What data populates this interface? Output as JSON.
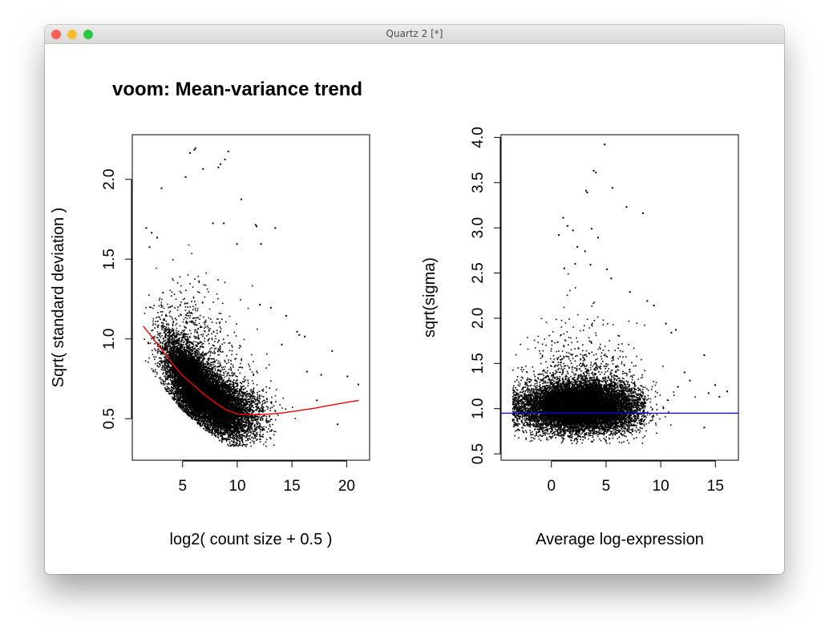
{
  "window": {
    "title": "Quartz 2 [*]",
    "buttons": {
      "close": "#fe5f57",
      "minimize": "#febc2e",
      "zoom": "#28c840"
    }
  },
  "chart_data": [
    {
      "type": "scatter",
      "title": "voom: Mean-variance trend",
      "xlabel": "log2( count size + 0.5 )",
      "ylabel": "Sqrt( standard deviation )",
      "xlim": [
        0.4,
        22.1
      ],
      "ylim": [
        0.24,
        2.28
      ],
      "xticks": [
        5,
        10,
        15,
        20
      ],
      "yticks": [
        0.5,
        1.0,
        1.5,
        2.0
      ],
      "ytick_labels": [
        "0.5",
        "1.0",
        "1.5",
        "2.0"
      ],
      "grid": false,
      "point_color": "#000000",
      "density_model": {
        "n_points": 15000,
        "seed": 7,
        "count_mean": 6.6,
        "count_sd": 2.3,
        "count_min": 1.4,
        "count_max": 21.8
      },
      "points": [
        [
          5.6,
          2.17
        ],
        [
          6.0,
          2.19
        ],
        [
          6.1,
          2.2
        ],
        [
          8.2,
          2.08
        ],
        [
          8.4,
          2.1
        ],
        [
          9.1,
          2.18
        ],
        [
          8.8,
          2.13
        ],
        [
          6.8,
          2.07
        ],
        [
          5.2,
          2.02
        ],
        [
          3.0,
          1.95
        ],
        [
          10.3,
          1.88
        ],
        [
          7.7,
          1.73
        ],
        [
          8.7,
          1.73
        ],
        [
          11.6,
          1.72
        ],
        [
          11.7,
          1.71
        ],
        [
          13.4,
          1.7
        ],
        [
          9.9,
          1.6
        ],
        [
          12.1,
          1.6
        ],
        [
          14.4,
          1.15
        ],
        [
          15.4,
          1.05
        ],
        [
          15.6,
          1.03
        ],
        [
          16.1,
          1.02
        ],
        [
          17.6,
          0.78
        ],
        [
          18.6,
          0.93
        ],
        [
          20.0,
          0.77
        ],
        [
          21.0,
          0.72
        ],
        [
          19.1,
          0.47
        ],
        [
          12.0,
          1.22
        ],
        [
          13.0,
          1.2
        ],
        [
          14.0,
          0.97
        ],
        [
          16.3,
          0.8
        ],
        [
          17.2,
          0.62
        ],
        [
          1.6,
          1.7
        ],
        [
          2.1,
          1.67
        ],
        [
          2.6,
          1.64
        ],
        [
          1.9,
          1.58
        ]
      ],
      "trend_line": {
        "color": "#ff0000",
        "x": [
          1.4,
          2.0,
          3.0,
          4.0,
          5.0,
          6.0,
          7.0,
          8.0,
          9.0,
          10.0,
          11.0,
          12.0,
          13.0,
          14.0,
          15.0,
          16.0,
          17.0,
          18.0,
          19.0,
          20.0,
          21.1
        ],
        "y": [
          1.08,
          1.03,
          0.94,
          0.85,
          0.77,
          0.71,
          0.65,
          0.6,
          0.555,
          0.53,
          0.525,
          0.525,
          0.53,
          0.535,
          0.545,
          0.555,
          0.565,
          0.578,
          0.59,
          0.603,
          0.615
        ]
      }
    },
    {
      "type": "scatter",
      "title": "",
      "xlabel": "Average log-expression",
      "ylabel": "sqrt(sigma)",
      "xlim": [
        -4.6,
        17.1
      ],
      "ylim": [
        0.43,
        4.03
      ],
      "xticks": [
        0,
        5,
        10,
        15
      ],
      "yticks": [
        0.5,
        1.0,
        1.5,
        2.0,
        2.5,
        3.0,
        3.5,
        4.0
      ],
      "ytick_labels": [
        "0.5",
        "1.0",
        "1.5",
        "2.0",
        "2.5",
        "3.0",
        "3.5",
        "4.0"
      ],
      "grid": false,
      "point_color": "#000000",
      "density_model": {
        "n_points": 15000,
        "seed": 11,
        "expr_mean": 2.6,
        "expr_sd": 2.6,
        "expr_min": -3.6,
        "expr_max": 16.2
      },
      "points": [
        [
          4.8,
          3.93
        ],
        [
          3.8,
          3.64
        ],
        [
          4.0,
          3.62
        ],
        [
          3.1,
          3.42
        ],
        [
          3.2,
          3.4
        ],
        [
          5.5,
          3.45
        ],
        [
          6.8,
          3.24
        ],
        [
          8.3,
          3.17
        ],
        [
          1.0,
          3.12
        ],
        [
          1.4,
          3.03
        ],
        [
          0.6,
          2.93
        ],
        [
          1.9,
          2.98
        ],
        [
          3.6,
          3.0
        ],
        [
          4.2,
          2.9
        ],
        [
          2.3,
          2.8
        ],
        [
          3.0,
          2.75
        ],
        [
          1.1,
          2.56
        ],
        [
          2.1,
          2.61
        ],
        [
          3.5,
          2.6
        ],
        [
          5.0,
          2.55
        ],
        [
          5.4,
          2.45
        ],
        [
          7.1,
          2.3
        ],
        [
          8.7,
          2.2
        ],
        [
          9.3,
          2.15
        ],
        [
          11.3,
          1.88
        ],
        [
          13.9,
          1.6
        ],
        [
          14.3,
          1.18
        ],
        [
          14.9,
          1.27
        ],
        [
          15.3,
          1.14
        ],
        [
          16.0,
          1.2
        ],
        [
          12.1,
          1.41
        ],
        [
          12.6,
          1.32
        ],
        [
          11.5,
          1.25
        ],
        [
          13.9,
          0.8
        ],
        [
          10.4,
          1.95
        ],
        [
          10.9,
          1.85
        ]
      ],
      "hline": {
        "y": 0.95,
        "color": "#0000ff"
      }
    }
  ]
}
